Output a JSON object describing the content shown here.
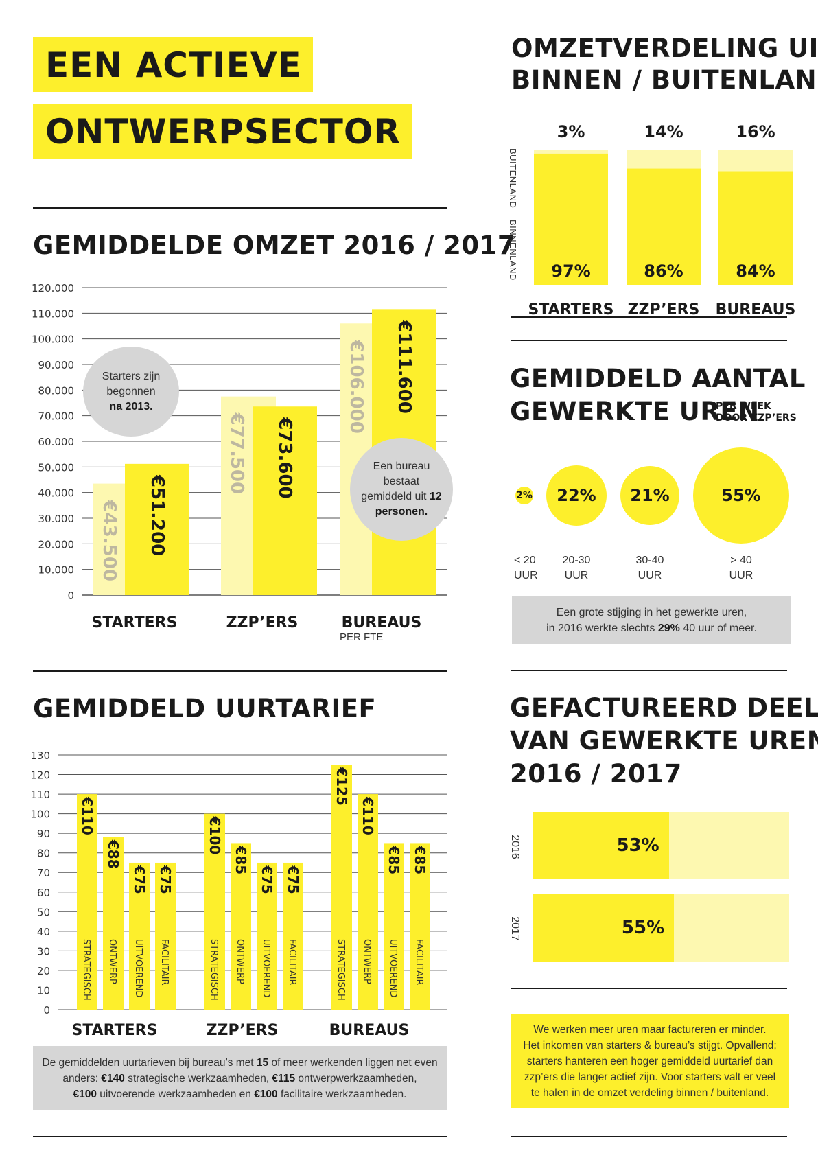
{
  "header": {
    "line1": "EEN ACTIEVE",
    "line2": "ONTWERPSECTOR"
  },
  "revenue": {
    "title": "GEMIDDELDE OMZET 2016 / 2017",
    "callout_starters": {
      "text": "Starters zijn begonnen",
      "bold": "na 2013."
    },
    "callout_bureau": {
      "text": "Een bureau bestaat gemiddeld uit",
      "bold": "12 personen."
    },
    "bureaus_sublabel": "PER FTE"
  },
  "split": {
    "title_line1": "OMZETVERDELING UIT",
    "title_line2": "BINNEN / BUITENLAND",
    "axis_top": "BUITENLAND",
    "axis_bottom": "BINNENLAND"
  },
  "hours": {
    "title_line1": "GEMIDDELD AANTAL",
    "title_line2": "GEWERKTE UREN",
    "subtitle_line1": "PER WEEK",
    "subtitle_line2": "DOOR ZZP’ERS",
    "bubbles": [
      {
        "value": "2%",
        "label": "< 20\nUUR",
        "pct": 2
      },
      {
        "value": "22%",
        "label": "20-30\nUUR",
        "pct": 22
      },
      {
        "value": "21%",
        "label": "30-40\nUUR",
        "pct": 21
      },
      {
        "value": "55%",
        "label": "> 40\nUUR",
        "pct": 55
      }
    ],
    "note_line1": "Een grote stijging in het gewerkte uren,",
    "note_line2_pre": "in 2016 werkte slechts",
    "note_line2_bold": "29%",
    "note_line2_post": "40 uur of meer."
  },
  "rates": {
    "title": "GEMIDDELD UURTARIEF",
    "note_a": "De gemiddelden uurtarieven bij bureau’s met",
    "note_b": "15",
    "note_c": "of meer werkenden liggen net even anders:",
    "note_d": "€140",
    "note_e": "strategische werkzaamheden,",
    "note_f": "€115",
    "note_g": "ontwerpwerkzaamheden,",
    "note_h": "€100",
    "note_i": "uitvoerende werkzaamheden en",
    "note_j": "€100",
    "note_k": "facilitaire werkzaamheden."
  },
  "billed": {
    "title_line1": "GEFACTUREERD DEEL",
    "title_line2": "VAN GEWERKTE UREN",
    "title_line3": "2016 / 2017",
    "rows": [
      {
        "year": "2016",
        "value": "53%",
        "pct": 53
      },
      {
        "year": "2017",
        "value": "55%",
        "pct": 55
      }
    ]
  },
  "conclusion": {
    "line1": "We werken meer uren maar factureren er minder.",
    "line2": "Het inkomen van starters & bureau’s stijgt. Opvallend;",
    "line3": "starters hanteren een hoger gemiddeld uurtarief dan",
    "line4": "zzp’ers die langer actief zijn. Voor starters valt er veel",
    "line5": "te halen in de omzet verdeling binnen / buitenland."
  },
  "colors": {
    "yellow": "#fdef2c",
    "light_yellow": "#fdf8b0",
    "grey": "#d6d6d6",
    "ink": "#1a1a1a"
  },
  "chart_data": [
    {
      "type": "bar",
      "title": "GEMIDDELDE OMZET 2016 / 2017",
      "categories": [
        "STARTERS",
        "ZZP’ERS",
        "BUREAUS"
      ],
      "series": [
        {
          "values": [
            43500,
            77500,
            106000
          ],
          "labels": [
            "€43.500",
            "€77.500",
            "€106.000"
          ],
          "color": "#fdf8b0"
        },
        {
          "values": [
            51200,
            73600,
            111600
          ],
          "labels": [
            "€51.200",
            "€73.600",
            "€111.600"
          ],
          "color": "#fdef2c"
        }
      ],
      "ylim": [
        0,
        120000
      ],
      "yticks": [
        "0",
        "10.000",
        "20.000",
        "30.000",
        "40.000",
        "50.000",
        "60.000",
        "70.000",
        "80.000",
        "90.000",
        "100.000",
        "110.000",
        "120.000"
      ],
      "grid": true
    },
    {
      "type": "bar",
      "title": "OMZETVERDELING UIT BINNEN / BUITENLAND",
      "categories": [
        "STARTERS",
        "ZZP’ERS",
        "BUREAUS"
      ],
      "series": [
        {
          "name": "BINNENLAND",
          "values": [
            97,
            86,
            84
          ],
          "labels": [
            "97%",
            "86%",
            "84%"
          ]
        },
        {
          "name": "BUITENLAND",
          "values": [
            3,
            14,
            16
          ],
          "labels": [
            "3%",
            "14%",
            "16%"
          ]
        }
      ],
      "stacked": true,
      "ylim": [
        0,
        100
      ]
    },
    {
      "type": "bar",
      "title": "GEMIDDELD UURTARIEF",
      "groups": [
        "STARTERS",
        "ZZP’ERS",
        "BUREAUS"
      ],
      "categories": [
        "STRATEGISCH",
        "ONTWERP",
        "UITVOEREND",
        "FACILITAIR"
      ],
      "series": [
        {
          "group": "STARTERS",
          "values": [
            110,
            88,
            75,
            75
          ],
          "labels": [
            "€110",
            "€88",
            "€75",
            "€75"
          ]
        },
        {
          "group": "ZZP’ERS",
          "values": [
            100,
            85,
            75,
            75
          ],
          "labels": [
            "€100",
            "€85",
            "€75",
            "€75"
          ]
        },
        {
          "group": "BUREAUS",
          "values": [
            125,
            110,
            85,
            85
          ],
          "labels": [
            "€125",
            "€110",
            "€85",
            "€85"
          ]
        }
      ],
      "ylim": [
        0,
        130
      ],
      "yticks": [
        "0",
        "10",
        "20",
        "30",
        "40",
        "50",
        "60",
        "70",
        "80",
        "90",
        "100",
        "110",
        "120",
        "130"
      ],
      "grid": true
    }
  ]
}
